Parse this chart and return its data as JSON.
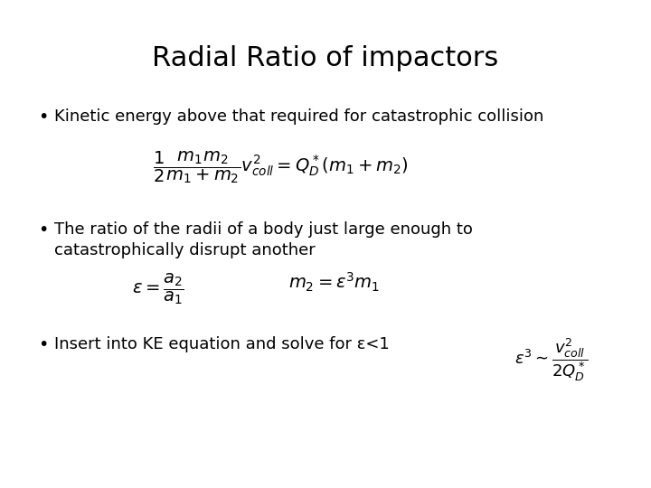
{
  "title": "Radial Ratio of impactors",
  "title_fontsize": 22,
  "background_color": "#ffffff",
  "text_color": "#000000",
  "bullet1": "Kinetic energy above that required for catastrophic collision",
  "eq1": "$\\dfrac{1}{2}\\dfrac{m_1m_2}{m_1+m_2}v^2_{coll} = Q^*_D(m_1+m_2)$",
  "bullet2_line1": "The ratio of the radii of a body just large enough to",
  "bullet2_line2": "catastrophically disrupt another",
  "eq2a": "$\\epsilon = \\dfrac{a_2}{a_1}$",
  "eq2b": "$m_2 = \\epsilon^3 m_1$",
  "bullet3": "Insert into KE equation and solve for ε<1",
  "eq3": "$\\epsilon^3 \\sim \\dfrac{v^2_{coll}}{2Q^*_D}$",
  "bullet_fontsize": 13,
  "eq_fontsize": 13,
  "eq3_fontsize": 12
}
